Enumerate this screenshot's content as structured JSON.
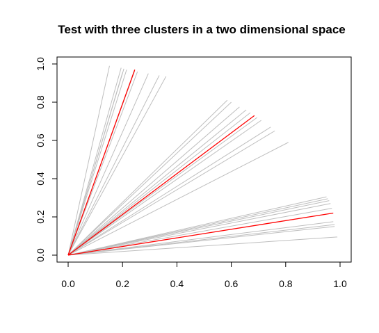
{
  "chart_data": {
    "type": "line",
    "title": "Test with three clusters in a two dimensional space",
    "xlabel": "",
    "ylabel": "",
    "xlim": [
      0,
      1
    ],
    "ylim": [
      0,
      1
    ],
    "x_ticks": [
      "0.0",
      "0.2",
      "0.4",
      "0.6",
      "0.8",
      "1.0"
    ],
    "y_ticks": [
      "0.0",
      "0.2",
      "0.4",
      "0.6",
      "0.8",
      "1.0"
    ],
    "grid": false,
    "legend": "none",
    "colors": {
      "members": "#bebebe",
      "centroids": "#ff0000",
      "axes": "#000000"
    },
    "series": [
      {
        "role": "members",
        "segments": [
          {
            "from": [
              0,
              0
            ],
            "to": [
              0.152,
              0.99
            ]
          },
          {
            "from": [
              0,
              0
            ],
            "to": [
              0.195,
              0.98
            ]
          },
          {
            "from": [
              0,
              0
            ],
            "to": [
              0.205,
              0.975
            ]
          },
          {
            "from": [
              0,
              0
            ],
            "to": [
              0.215,
              0.97
            ]
          },
          {
            "from": [
              0,
              0
            ],
            "to": [
              0.245,
              0.965
            ]
          },
          {
            "from": [
              0,
              0
            ],
            "to": [
              0.255,
              0.96
            ]
          },
          {
            "from": [
              0,
              0
            ],
            "to": [
              0.295,
              0.95
            ]
          },
          {
            "from": [
              0,
              0
            ],
            "to": [
              0.335,
              0.94
            ]
          },
          {
            "from": [
              0,
              0
            ],
            "to": [
              0.36,
              0.935
            ]
          },
          {
            "from": [
              0,
              0
            ],
            "to": [
              0.2,
              0.955
            ]
          },
          {
            "from": [
              0,
              0
            ],
            "to": [
              0.585,
              0.81
            ]
          },
          {
            "from": [
              0,
              0
            ],
            "to": [
              0.6,
              0.8
            ]
          },
          {
            "from": [
              0,
              0
            ],
            "to": [
              0.63,
              0.775
            ]
          },
          {
            "from": [
              0,
              0
            ],
            "to": [
              0.655,
              0.76
            ]
          },
          {
            "from": [
              0,
              0
            ],
            "to": [
              0.67,
              0.745
            ]
          },
          {
            "from": [
              0,
              0
            ],
            "to": [
              0.695,
              0.72
            ]
          },
          {
            "from": [
              0,
              0
            ],
            "to": [
              0.71,
              0.705
            ]
          },
          {
            "from": [
              0,
              0
            ],
            "to": [
              0.745,
              0.67
            ]
          },
          {
            "from": [
              0,
              0
            ],
            "to": [
              0.76,
              0.65
            ]
          },
          {
            "from": [
              0,
              0
            ],
            "to": [
              0.81,
              0.59
            ]
          },
          {
            "from": [
              0,
              0
            ],
            "to": [
              0.95,
              0.305
            ]
          },
          {
            "from": [
              0,
              0
            ],
            "to": [
              0.955,
              0.295
            ]
          },
          {
            "from": [
              0,
              0
            ],
            "to": [
              0.96,
              0.285
            ]
          },
          {
            "from": [
              0,
              0
            ],
            "to": [
              0.965,
              0.27
            ]
          },
          {
            "from": [
              0,
              0
            ],
            "to": [
              0.97,
              0.245
            ]
          },
          {
            "from": [
              0,
              0
            ],
            "to": [
              0.975,
              0.175
            ]
          },
          {
            "from": [
              0,
              0
            ],
            "to": [
              0.98,
              0.16
            ]
          },
          {
            "from": [
              0,
              0
            ],
            "to": [
              0.98,
              0.15
            ]
          },
          {
            "from": [
              0,
              0
            ],
            "to": [
              0.99,
              0.095
            ]
          }
        ]
      },
      {
        "role": "centroids",
        "segments": [
          {
            "from": [
              0,
              0
            ],
            "to": [
              0.245,
              0.97
            ]
          },
          {
            "from": [
              0,
              0
            ],
            "to": [
              0.685,
              0.73
            ]
          },
          {
            "from": [
              0,
              0
            ],
            "to": [
              0.975,
              0.22
            ]
          }
        ]
      }
    ]
  }
}
